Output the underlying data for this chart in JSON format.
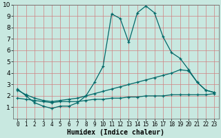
{
  "x": [
    0,
    1,
    2,
    3,
    4,
    5,
    6,
    7,
    8,
    9,
    10,
    11,
    12,
    13,
    14,
    15,
    16,
    17,
    18,
    19,
    20,
    21,
    22,
    23
  ],
  "line1": [
    2.6,
    2.0,
    1.4,
    1.1,
    0.9,
    1.1,
    1.1,
    1.4,
    2.0,
    3.2,
    4.6,
    9.2,
    8.8,
    6.7,
    9.3,
    9.9,
    9.3,
    7.2,
    5.8,
    5.3,
    4.3,
    3.2,
    2.5,
    2.3
  ],
  "line2": [
    2.5,
    2.1,
    1.8,
    1.6,
    1.5,
    1.6,
    1.7,
    1.8,
    2.0,
    2.2,
    2.4,
    2.6,
    2.8,
    3.0,
    3.2,
    3.4,
    3.6,
    3.8,
    4.0,
    4.3,
    4.2,
    3.2,
    2.5,
    2.3
  ],
  "line3": [
    1.8,
    1.7,
    1.6,
    1.5,
    1.4,
    1.5,
    1.5,
    1.5,
    1.6,
    1.7,
    1.7,
    1.8,
    1.8,
    1.9,
    1.9,
    2.0,
    2.0,
    2.0,
    2.1,
    2.1,
    2.1,
    2.1,
    2.1,
    2.2
  ],
  "background_color": "#c8e8e0",
  "grid_color": "#a8c8c0",
  "line_color": "#006868",
  "xlabel": "Humidex (Indice chaleur)",
  "ylim": [
    0,
    10
  ],
  "xlim": [
    -0.5,
    23.5
  ],
  "yticks": [
    1,
    2,
    3,
    4,
    5,
    6,
    7,
    8,
    9,
    10
  ],
  "xticks": [
    0,
    1,
    2,
    3,
    4,
    5,
    6,
    7,
    8,
    9,
    10,
    11,
    12,
    13,
    14,
    15,
    16,
    17,
    18,
    19,
    20,
    21,
    22,
    23
  ],
  "xlabel_fontsize": 7,
  "tick_fontsize": 6.5
}
